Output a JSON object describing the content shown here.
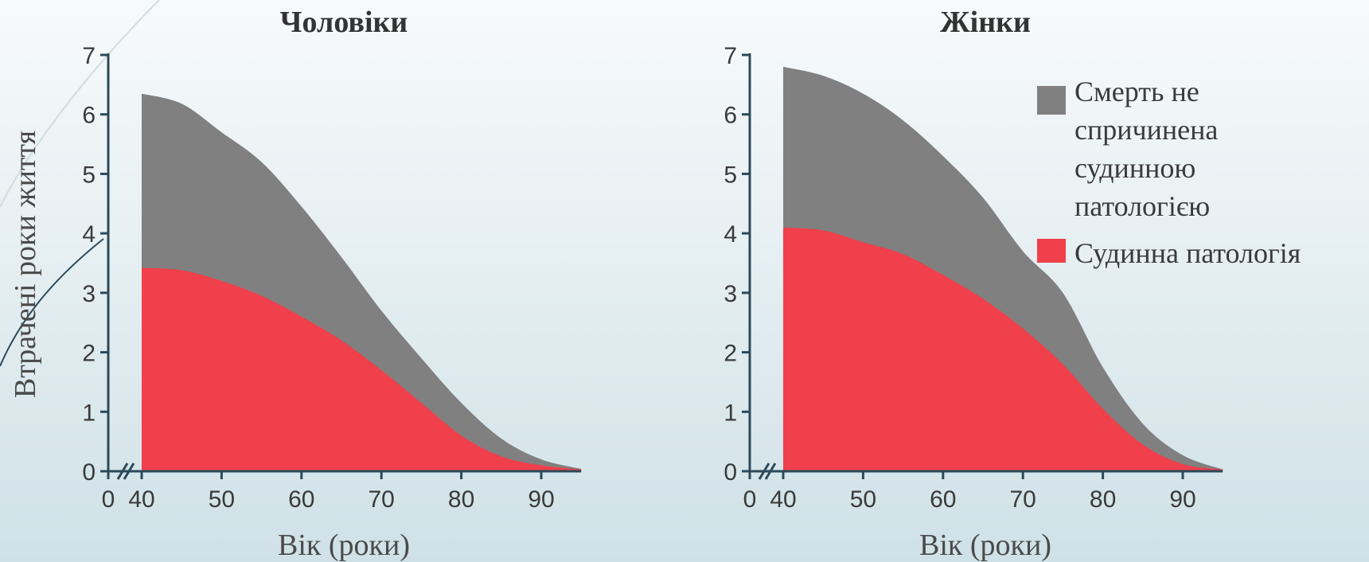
{
  "chart_data": [
    {
      "type": "area",
      "title": "Чоловіки",
      "xlabel": "Вік (роки)",
      "ylabel": "Втрачені роки життя",
      "xlim": [
        40,
        95
      ],
      "ylim": [
        0,
        7
      ],
      "x_ticks": [
        "0",
        "40",
        "50",
        "60",
        "70",
        "80",
        "90"
      ],
      "y_ticks": [
        "0",
        "1",
        "2",
        "3",
        "4",
        "5",
        "6",
        "7"
      ],
      "axis_break": true,
      "stacked": true,
      "x": [
        40,
        45,
        50,
        55,
        60,
        65,
        70,
        75,
        80,
        85,
        90,
        95
      ],
      "series": [
        {
          "name": "Судинна патологія",
          "color": "#ef404b",
          "values": [
            3.42,
            3.38,
            3.2,
            2.95,
            2.6,
            2.2,
            1.7,
            1.15,
            0.6,
            0.25,
            0.1,
            0.03
          ]
        },
        {
          "name": "Смерть не спричинена судинною патологією",
          "color": "#808080",
          "values": [
            2.93,
            2.8,
            2.5,
            2.25,
            1.85,
            1.4,
            1.0,
            0.75,
            0.55,
            0.3,
            0.1,
            0.01
          ]
        }
      ]
    },
    {
      "type": "area",
      "title": "Жінки",
      "xlabel": "Вік (роки)",
      "ylabel": "",
      "xlim": [
        40,
        95
      ],
      "ylim": [
        0,
        7
      ],
      "x_ticks": [
        "0",
        "40",
        "50",
        "60",
        "70",
        "80",
        "90"
      ],
      "y_ticks": [
        "0",
        "1",
        "2",
        "3",
        "4",
        "5",
        "6",
        "7"
      ],
      "axis_break": true,
      "stacked": true,
      "x": [
        40,
        45,
        50,
        55,
        60,
        65,
        70,
        75,
        80,
        85,
        90,
        95
      ],
      "series": [
        {
          "name": "Судинна патологія",
          "color": "#ef404b",
          "values": [
            4.1,
            4.05,
            3.85,
            3.65,
            3.3,
            2.9,
            2.4,
            1.8,
            1.05,
            0.45,
            0.12,
            0.03
          ]
        },
        {
          "name": "Смерть не спричинена судинною патологією",
          "color": "#808080",
          "values": [
            2.7,
            2.6,
            2.5,
            2.25,
            2.0,
            1.7,
            1.3,
            1.2,
            0.7,
            0.35,
            0.15,
            0.0
          ]
        }
      ]
    }
  ],
  "legend": {
    "position": "top-right of second chart",
    "items": [
      {
        "label_lines": [
          "Смерть не",
          "спричинена",
          "судинною",
          "патологією"
        ],
        "color": "#808080"
      },
      {
        "label_lines": [
          "Судинна патологія"
        ],
        "color": "#ef404b"
      }
    ]
  }
}
